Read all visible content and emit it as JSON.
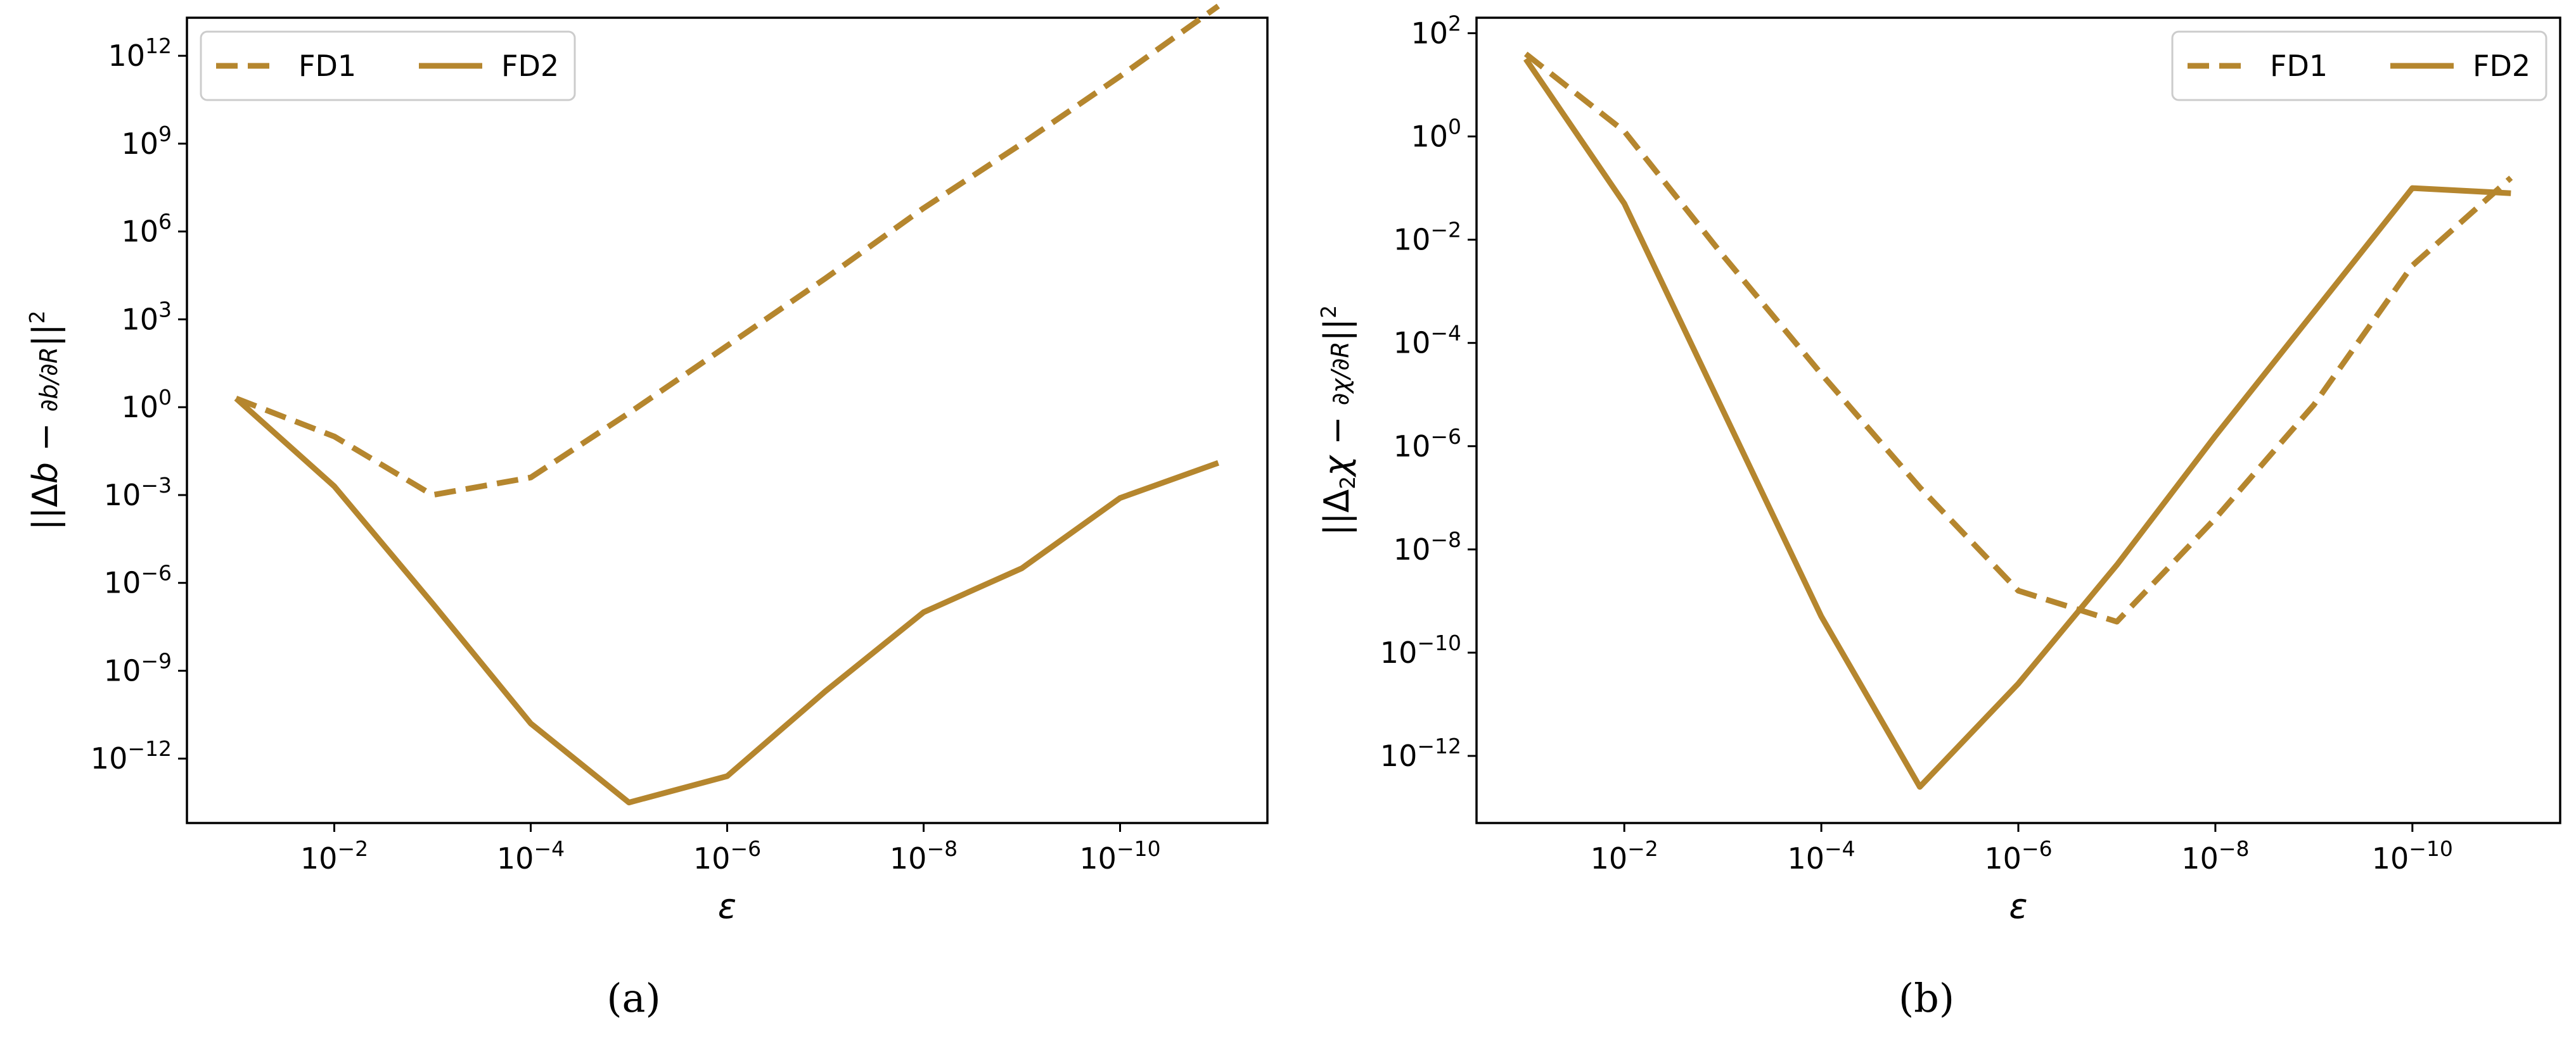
{
  "colors": {
    "series": "#b5862e",
    "axes": "#000000",
    "background": "#ffffff"
  },
  "chart_data": [
    {
      "type": "line",
      "panel_label": "(a)",
      "title": "",
      "xlabel": "ε",
      "ylabel": "||Δb − ∂b/∂R||²",
      "x_scale": "log-reversed",
      "y_scale": "log",
      "x": [
        0.1,
        0.01,
        0.001,
        0.0001,
        1e-05,
        1e-06,
        1e-07,
        1e-08,
        1e-09,
        1e-10,
        1e-11
      ],
      "xlim": [
        0.1,
        1e-11
      ],
      "ylim_exp": [
        -14.2,
        13.3
      ],
      "x_ticks": [
        {
          "value_exp": -2,
          "base": "10",
          "exp": "−2"
        },
        {
          "value_exp": -4,
          "base": "10",
          "exp": "−4"
        },
        {
          "value_exp": -6,
          "base": "10",
          "exp": "−6"
        },
        {
          "value_exp": -8,
          "base": "10",
          "exp": "−8"
        },
        {
          "value_exp": -10,
          "base": "10",
          "exp": "−10"
        }
      ],
      "y_ticks": [
        {
          "value_exp": 12,
          "base": "10",
          "exp": "12"
        },
        {
          "value_exp": 9,
          "base": "10",
          "exp": "9"
        },
        {
          "value_exp": 6,
          "base": "10",
          "exp": "6"
        },
        {
          "value_exp": 3,
          "base": "10",
          "exp": "3"
        },
        {
          "value_exp": 0,
          "base": "10",
          "exp": "0"
        },
        {
          "value_exp": -3,
          "base": "10",
          "exp": "−3"
        },
        {
          "value_exp": -6,
          "base": "10",
          "exp": "−6"
        },
        {
          "value_exp": -9,
          "base": "10",
          "exp": "−9"
        },
        {
          "value_exp": -12,
          "base": "10",
          "exp": "−12"
        }
      ],
      "legend": {
        "placement": "top-left",
        "entries": [
          "FD1",
          "FD2"
        ]
      },
      "series": [
        {
          "name": "FD1",
          "style": "dashed",
          "log10_values": [
            0.3,
            -1.0,
            -3.0,
            -2.4,
            -0.2,
            2.1,
            4.4,
            6.8,
            9.0,
            11.3,
            13.7
          ]
        },
        {
          "name": "FD2",
          "style": "solid",
          "log10_values": [
            0.3,
            -2.7,
            -6.7,
            -10.8,
            -13.5,
            -12.6,
            -9.7,
            -7.0,
            -5.5,
            -3.1,
            -1.9
          ]
        }
      ]
    },
    {
      "type": "line",
      "panel_label": "(b)",
      "title": "",
      "xlabel": "ε",
      "ylabel": "||Δ₂χ − ∂χ/∂R||²",
      "x_scale": "log-reversed",
      "y_scale": "log",
      "x": [
        0.1,
        0.01,
        0.001,
        0.0001,
        1e-05,
        1e-06,
        1e-07,
        1e-08,
        1e-09,
        1e-10,
        1e-11
      ],
      "xlim": [
        0.1,
        1e-11
      ],
      "ylim_exp": [
        -13.3,
        2.3
      ],
      "x_ticks": [
        {
          "value_exp": -2,
          "base": "10",
          "exp": "−2"
        },
        {
          "value_exp": -4,
          "base": "10",
          "exp": "−4"
        },
        {
          "value_exp": -6,
          "base": "10",
          "exp": "−6"
        },
        {
          "value_exp": -8,
          "base": "10",
          "exp": "−8"
        },
        {
          "value_exp": -10,
          "base": "10",
          "exp": "−10"
        }
      ],
      "y_ticks": [
        {
          "value_exp": 2,
          "base": "10",
          "exp": "2"
        },
        {
          "value_exp": 0,
          "base": "10",
          "exp": "0"
        },
        {
          "value_exp": -2,
          "base": "10",
          "exp": "−2"
        },
        {
          "value_exp": -4,
          "base": "10",
          "exp": "−4"
        },
        {
          "value_exp": -6,
          "base": "10",
          "exp": "−6"
        },
        {
          "value_exp": -8,
          "base": "10",
          "exp": "−8"
        },
        {
          "value_exp": -10,
          "base": "10",
          "exp": "−10"
        },
        {
          "value_exp": -12,
          "base": "10",
          "exp": "−12"
        }
      ],
      "legend": {
        "placement": "top-right",
        "entries": [
          "FD1",
          "FD2"
        ]
      },
      "series": [
        {
          "name": "FD1",
          "style": "dashed",
          "log10_values": [
            1.6,
            0.1,
            -2.3,
            -4.6,
            -6.8,
            -8.8,
            -9.4,
            -7.4,
            -5.2,
            -2.5,
            -0.8
          ]
        },
        {
          "name": "FD2",
          "style": "solid",
          "log10_values": [
            1.5,
            -1.3,
            -5.3,
            -9.3,
            -12.6,
            -10.6,
            -8.3,
            -5.8,
            -3.4,
            -1.0,
            -1.1
          ]
        }
      ]
    }
  ]
}
